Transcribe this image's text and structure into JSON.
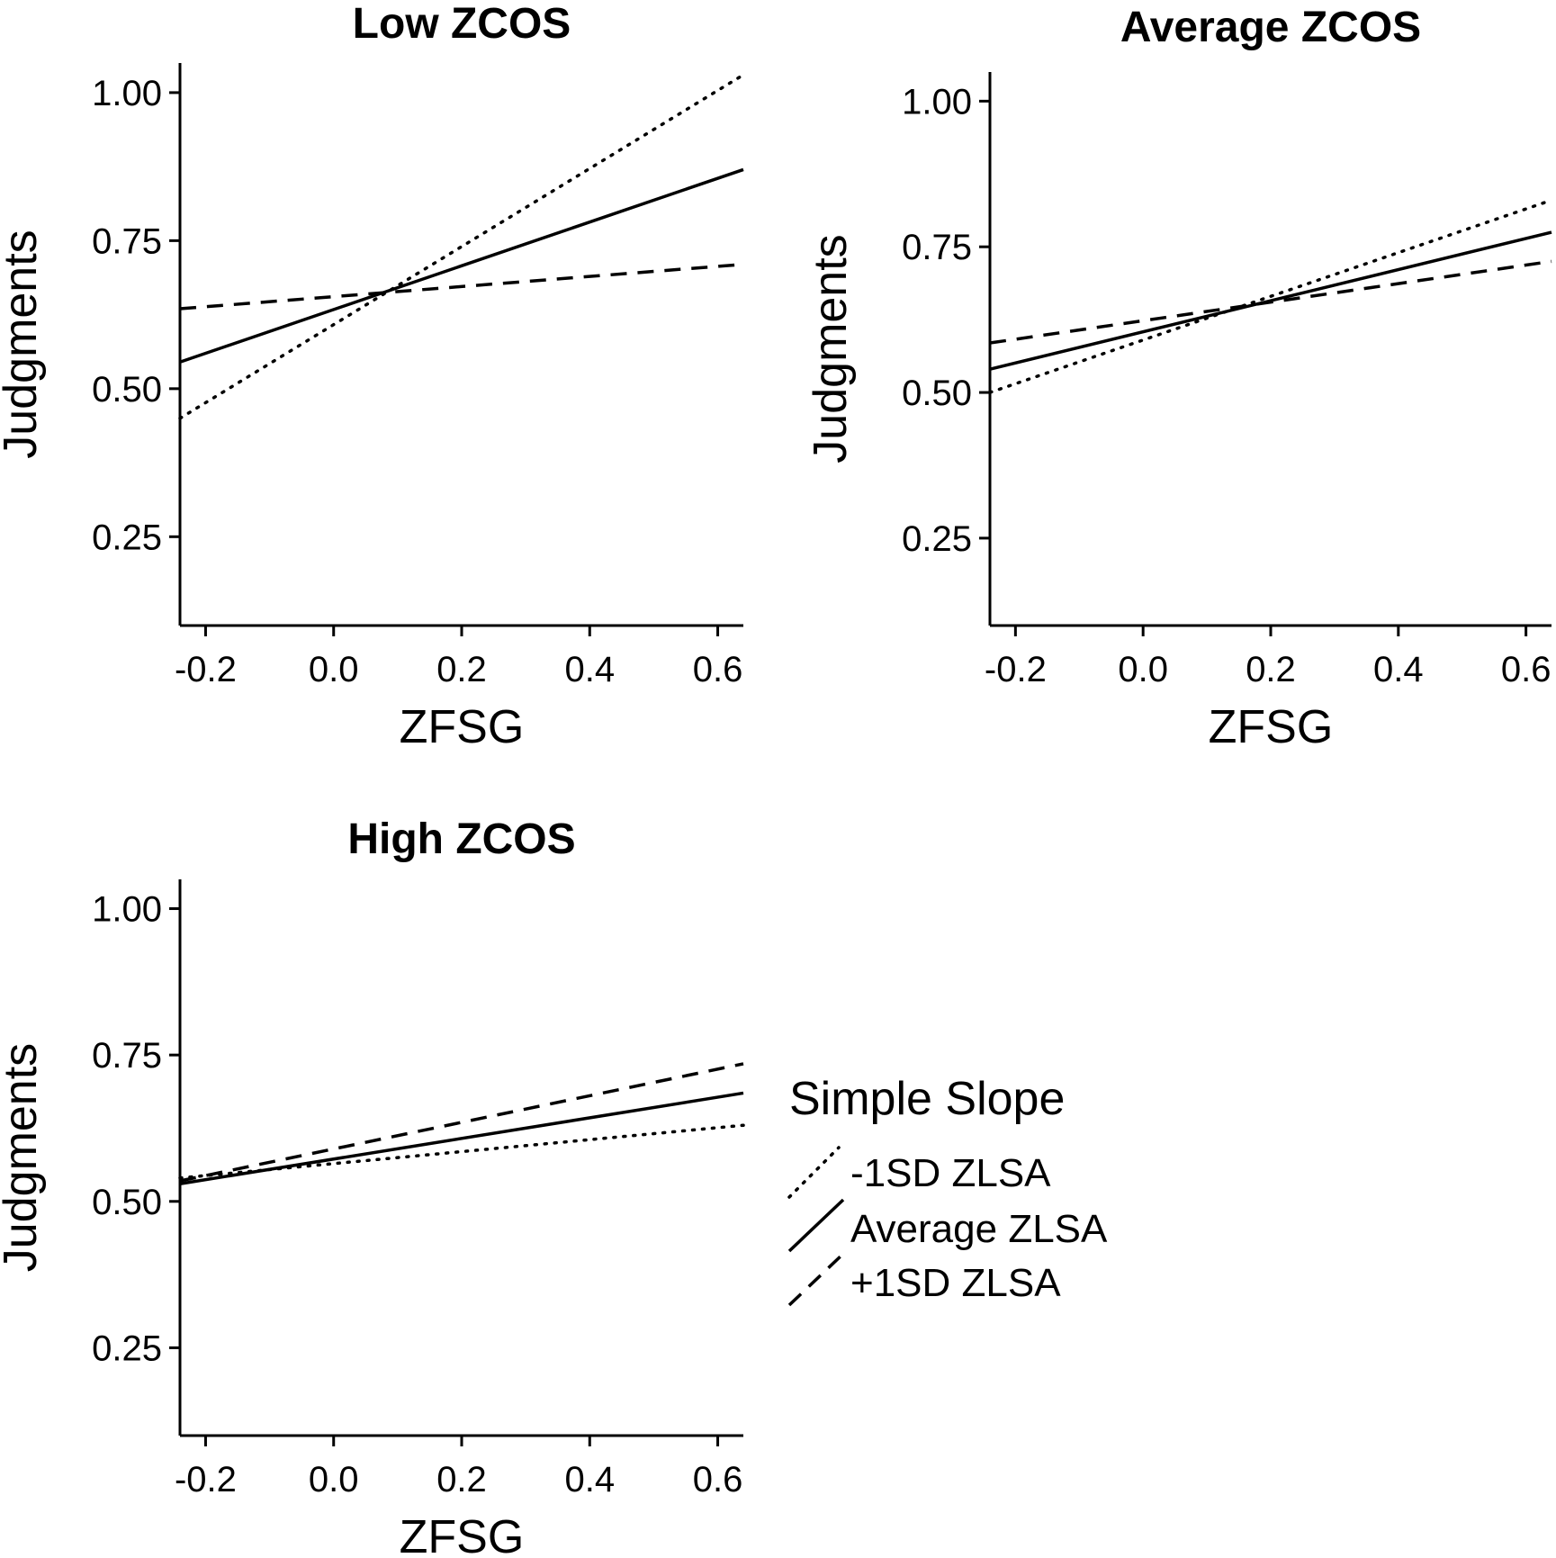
{
  "chart_data": [
    {
      "type": "line",
      "title": "Low ZCOS",
      "xlabel": "ZFSG",
      "ylabel": "Judgments",
      "xlim": [
        -0.24,
        0.64
      ],
      "ylim": [
        0.1,
        1.05
      ],
      "xticks": [
        "-0.2",
        "0.0",
        "0.2",
        "0.4",
        "0.6"
      ],
      "xtick_values": [
        -0.2,
        0.0,
        0.2,
        0.4,
        0.6
      ],
      "yticks": [
        "0.25",
        "0.50",
        "0.75",
        "1.00"
      ],
      "ytick_values": [
        0.25,
        0.5,
        0.75,
        1.0
      ],
      "series": [
        {
          "name": "-1SD ZLSA",
          "style": "dotted",
          "x": [
            -0.24,
            0.64
          ],
          "y": [
            0.45,
            1.03
          ]
        },
        {
          "name": "Average ZLSA",
          "style": "solid",
          "x": [
            -0.24,
            0.64
          ],
          "y": [
            0.545,
            0.87
          ]
        },
        {
          "name": "+1SD ZLSA",
          "style": "dashed",
          "x": [
            -0.24,
            0.64
          ],
          "y": [
            0.635,
            0.71
          ]
        }
      ]
    },
    {
      "type": "line",
      "title": "Average ZCOS",
      "xlabel": "ZFSG",
      "ylabel": "Judgments",
      "xlim": [
        -0.24,
        0.64
      ],
      "ylim": [
        0.1,
        1.05
      ],
      "xticks": [
        "-0.2",
        "0.0",
        "0.2",
        "0.4",
        "0.6"
      ],
      "xtick_values": [
        -0.2,
        0.0,
        0.2,
        0.4,
        0.6
      ],
      "yticks": [
        "0.25",
        "0.50",
        "0.75",
        "1.00"
      ],
      "ytick_values": [
        0.25,
        0.5,
        0.75,
        1.0
      ],
      "series": [
        {
          "name": "-1SD ZLSA",
          "style": "dotted",
          "x": [
            -0.24,
            0.64
          ],
          "y": [
            0.5,
            0.83
          ]
        },
        {
          "name": "Average ZLSA",
          "style": "solid",
          "x": [
            -0.24,
            0.64
          ],
          "y": [
            0.54,
            0.775
          ]
        },
        {
          "name": "+1SD ZLSA",
          "style": "dashed",
          "x": [
            -0.24,
            0.64
          ],
          "y": [
            0.585,
            0.725
          ]
        }
      ]
    },
    {
      "type": "line",
      "title": "High ZCOS",
      "xlabel": "ZFSG",
      "ylabel": "Judgments",
      "xlim": [
        -0.24,
        0.64
      ],
      "ylim": [
        0.1,
        1.05
      ],
      "xticks": [
        "-0.2",
        "0.0",
        "0.2",
        "0.4",
        "0.6"
      ],
      "xtick_values": [
        -0.2,
        0.0,
        0.2,
        0.4,
        0.6
      ],
      "yticks": [
        "0.25",
        "0.50",
        "0.75",
        "1.00"
      ],
      "ytick_values": [
        0.25,
        0.5,
        0.75,
        1.0
      ],
      "series": [
        {
          "name": "-1SD ZLSA",
          "style": "dotted",
          "x": [
            -0.24,
            0.64
          ],
          "y": [
            0.54,
            0.63
          ]
        },
        {
          "name": "Average ZLSA",
          "style": "solid",
          "x": [
            -0.24,
            0.64
          ],
          "y": [
            0.53,
            0.685
          ]
        },
        {
          "name": "+1SD ZLSA",
          "style": "dashed",
          "x": [
            -0.24,
            0.64
          ],
          "y": [
            0.535,
            0.735
          ]
        }
      ]
    }
  ],
  "legend": {
    "title": "Simple Slope",
    "placement": "right of bottom-left panel",
    "items": [
      {
        "label": "-1SD ZLSA",
        "style": "dotted"
      },
      {
        "label": "Average ZLSA",
        "style": "solid"
      },
      {
        "label": "+1SD ZLSA",
        "style": "dashed"
      }
    ]
  },
  "colors": {
    "line": "#000000",
    "background": "#ffffff"
  }
}
